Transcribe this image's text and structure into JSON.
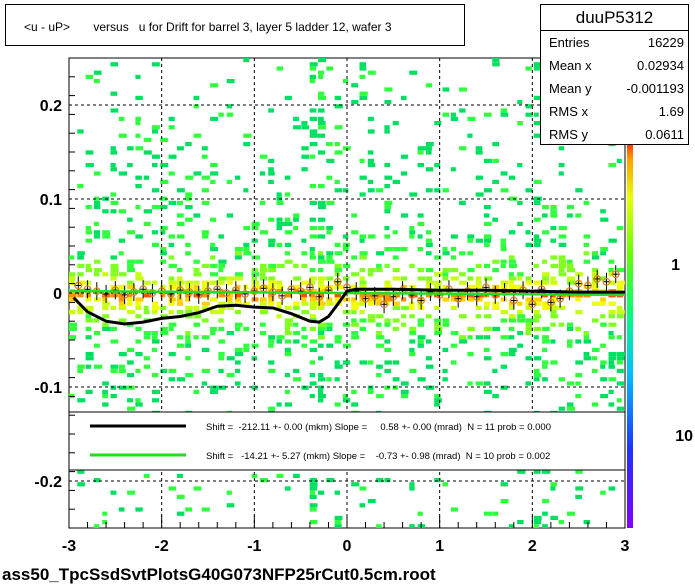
{
  "title": "<u - uP>       versus   u for Drift for barrel 3, layer 5 ladder 12, wafer 3",
  "stats": {
    "name": "duuP5312",
    "rows": [
      {
        "label": "Entries",
        "value": "16229"
      },
      {
        "label": "Mean x",
        "value": "0.02934"
      },
      {
        "label": "Mean y",
        "value": "-0.001193"
      },
      {
        "label": "RMS x",
        "value": "1.69"
      },
      {
        "label": "RMS y",
        "value": "0.0611"
      }
    ]
  },
  "filename": "ass50_TpcSsdSvtPlotsG40G073NFP25rCut0.5cm.root",
  "chart_data": {
    "type": "heatmap",
    "xlim": [
      -3,
      3
    ],
    "ylim": [
      -0.25,
      0.25
    ],
    "xticks": [
      "-3",
      "-2",
      "-1",
      "0",
      "1",
      "2",
      "3"
    ],
    "yticks": [
      "0.2",
      "0.1",
      "0",
      "-0.1",
      "-0.2"
    ],
    "ytick_values": [
      0.2,
      0.1,
      0,
      -0.1,
      -0.2
    ],
    "grid": true,
    "colorbar_labels": [
      "10",
      "1",
      "10"
    ],
    "colorbar_label_values": [
      10,
      1,
      0.1
    ],
    "colors": {
      "low": "#7a00ff",
      "mid1": "#0050ff",
      "mid2": "#00c8ff",
      "mid3": "#00ff60",
      "mid4": "#d0ff00",
      "high": "#ff3000",
      "profile_marker": "#e08020",
      "fit_black": "#000000",
      "fit_green": "#22dd22"
    },
    "legend": {
      "placement": "bottom",
      "entries": [
        {
          "color": "#000000",
          "text": "Shift =  -212.11 +- 0.00 (mkm) Slope =     0.58 +- 0.00 (mrad)  N = 11 prob = 0.000"
        },
        {
          "color": "#22dd22",
          "text": "Shift =   -14.21 +- 5.27 (mkm) Slope =    -0.73 +- 0.98 (mrad)  N = 10 prob = 0.002"
        }
      ]
    },
    "black_fit": {
      "x": [
        -2.95,
        -2.8,
        -2.6,
        -2.4,
        -2.2,
        -2.0,
        -1.8,
        -1.6,
        -1.4,
        -1.2,
        -1.0,
        -0.8,
        -0.6,
        -0.4,
        -0.3,
        -0.2,
        -0.1,
        0.0,
        0.1,
        0.5,
        1.0,
        1.5,
        2.0,
        2.5,
        3.0
      ],
      "y": [
        -0.005,
        -0.02,
        -0.03,
        -0.033,
        -0.031,
        -0.027,
        -0.025,
        -0.021,
        -0.014,
        -0.013,
        -0.015,
        -0.016,
        -0.022,
        -0.03,
        -0.031,
        -0.025,
        -0.012,
        0.002,
        0.004,
        0.004,
        0.003,
        0.003,
        0.002,
        0.001,
        0.001
      ]
    },
    "green_fit": {
      "x": [
        -3,
        3
      ],
      "y": [
        0.002,
        -0.002
      ]
    },
    "profile": {
      "x": [
        -2.9,
        -2.8,
        -2.7,
        -2.6,
        -2.5,
        -2.4,
        -2.3,
        -2.2,
        -2.1,
        -2.0,
        -1.9,
        -1.8,
        -1.7,
        -1.6,
        -1.5,
        -1.4,
        -1.3,
        -1.2,
        -1.1,
        -1.0,
        -0.9,
        -0.8,
        -0.7,
        -0.6,
        -0.5,
        -0.4,
        -0.3,
        -0.2,
        -0.1,
        0.0,
        0.1,
        0.2,
        0.3,
        0.4,
        0.5,
        0.6,
        0.7,
        0.8,
        0.9,
        1.0,
        1.1,
        1.2,
        1.3,
        1.4,
        1.5,
        1.6,
        1.7,
        1.8,
        1.9,
        2.0,
        2.1,
        2.2,
        2.3,
        2.4,
        2.5,
        2.6,
        2.7,
        2.8,
        2.9
      ],
      "y": [
        0.008,
        0.004,
        0.002,
        -0.001,
        0.003,
        -0.002,
        0.001,
        0.004,
        0.0,
        0.002,
        -0.001,
        0.003,
        0.001,
        -0.002,
        0.002,
        0.004,
        0.0,
        0.003,
        -0.001,
        0.002,
        0.005,
        0.001,
        -0.003,
        0.004,
        0.002,
        0.006,
        -0.004,
        0.003,
        0.012,
        0.006,
        0.002,
        -0.006,
        -0.003,
        -0.012,
        -0.004,
        0.003,
        -0.002,
        -0.008,
        0.001,
        -0.002,
        0.004,
        -0.006,
        0.002,
        -0.004,
        0.006,
        -0.002,
        0.001,
        -0.008,
        0.003,
        -0.012,
        0.004,
        -0.01,
        -0.006,
        0.002,
        0.01,
        0.008,
        0.015,
        0.012,
        0.02
      ]
    }
  }
}
